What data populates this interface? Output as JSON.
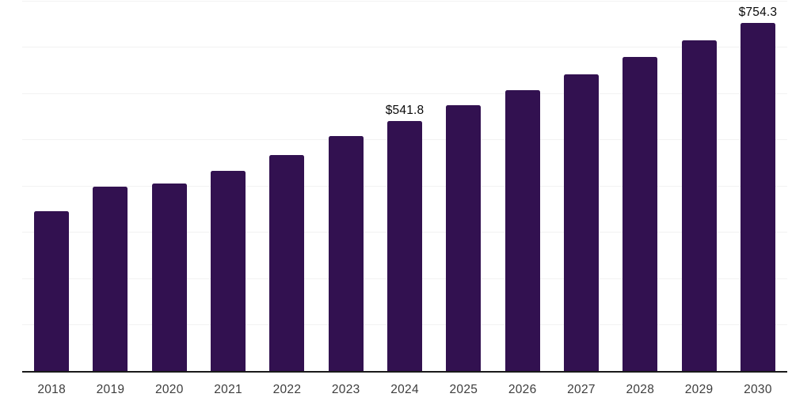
{
  "chart_data": {
    "type": "bar",
    "title": "",
    "categories": [
      "2018",
      "2019",
      "2020",
      "2021",
      "2022",
      "2023",
      "2024",
      "2025",
      "2026",
      "2027",
      "2028",
      "2029",
      "2030"
    ],
    "values": [
      347,
      400,
      406,
      434,
      468,
      509,
      541.8,
      575,
      609,
      642,
      681,
      716,
      754.3
    ],
    "data_labels": [
      "",
      "",
      "",
      "",
      "",
      "",
      "$541.8",
      "",
      "",
      "",
      "",
      "",
      "$754.3"
    ],
    "xlabel": "",
    "ylabel": "",
    "ylim": [
      0,
      800
    ],
    "gridline_step": 100,
    "grid": true,
    "legend": false,
    "colors": {
      "bar": "#321150",
      "gridline": "#f2f2f2",
      "axis_line": "#1a1a1a",
      "tick_label": "#3d3d3d",
      "data_label": "#0a0a0a",
      "background": "#ffffff"
    }
  }
}
